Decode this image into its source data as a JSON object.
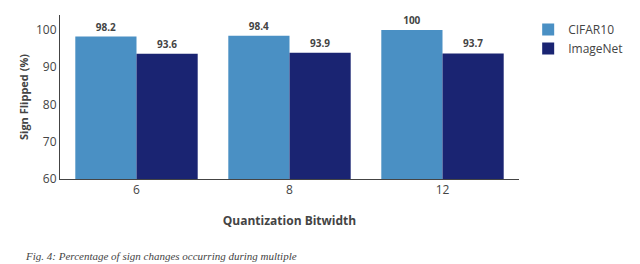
{
  "chart_data": {
    "type": "bar",
    "categories": [
      "6",
      "8",
      "12"
    ],
    "series": [
      {
        "name": "CIFAR10",
        "color": "#4a90c4",
        "values": [
          98.2,
          98.4,
          100
        ]
      },
      {
        "name": "ImageNet",
        "color": "#1a2472",
        "values": [
          93.6,
          93.9,
          93.7
        ]
      }
    ],
    "xlabel": "Quantization Bitwidth",
    "ylabel": "Sign Flipped (%)",
    "ylim": [
      60,
      104
    ],
    "yticks": [
      60,
      70,
      80,
      90,
      100
    ],
    "data_labels": true,
    "legend": "upper right",
    "grid": false,
    "caption": "Fig. 4: Percentage of sign changes occurring during multiple"
  }
}
